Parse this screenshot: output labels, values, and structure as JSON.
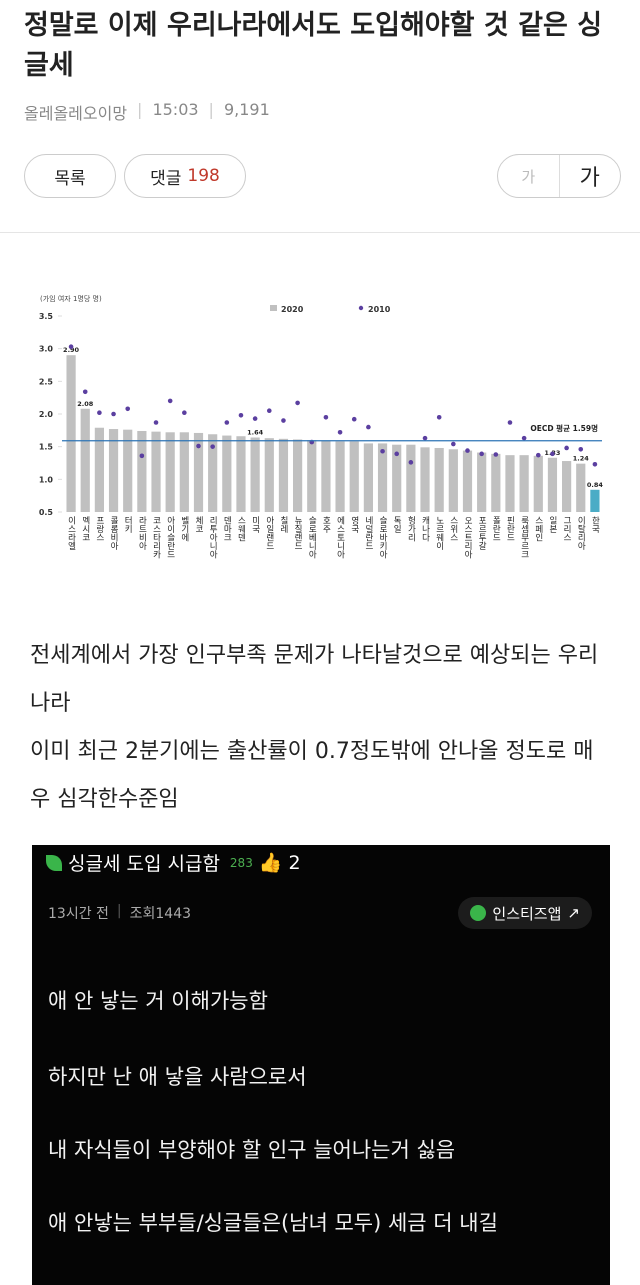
{
  "header": {
    "title": "정말로 이제 우리나라에서도 도입해야할 것 같은 싱글세",
    "author": "올레올레오이망",
    "time": "15:03",
    "views": "9,191",
    "buttons": {
      "list": "목록",
      "comments_label": "댓글",
      "comments_count": "198",
      "font_small": "가",
      "font_large": "가"
    }
  },
  "chart_data": {
    "type": "bar",
    "y_label": "(가임 여자 1명당 명)",
    "categories": [
      "이스라엘",
      "멕시코",
      "프랑스",
      "콜롬비아",
      "터키",
      "라트비아",
      "코스타리카",
      "아이슬란드",
      "벨기에",
      "체코",
      "리투아니아",
      "덴마크",
      "스웨덴",
      "미국",
      "아일랜드",
      "칠레",
      "뉴질랜드",
      "슬로베니아",
      "호주",
      "에스토니아",
      "영국",
      "네덜란드",
      "슬로바키아",
      "독일",
      "헝가리",
      "캐나다",
      "노르웨이",
      "스위스",
      "오스트리아",
      "포르투갈",
      "폴란드",
      "핀란드",
      "룩셈부르크",
      "스페인",
      "일본",
      "그리스",
      "이탈리아",
      "한국"
    ],
    "series": [
      {
        "name": "2020",
        "color": "#c0c0c0",
        "colors": [
          "#c0c0c0",
          "#c0c0c0",
          "#c0c0c0",
          "#c0c0c0",
          "#c0c0c0",
          "#c0c0c0",
          "#c0c0c0",
          "#c0c0c0",
          "#c0c0c0",
          "#c0c0c0",
          "#c0c0c0",
          "#c0c0c0",
          "#c0c0c0",
          "#c0c0c0",
          "#c0c0c0",
          "#c0c0c0",
          "#c0c0c0",
          "#c0c0c0",
          "#c0c0c0",
          "#c0c0c0",
          "#c0c0c0",
          "#c0c0c0",
          "#c0c0c0",
          "#c0c0c0",
          "#c0c0c0",
          "#c0c0c0",
          "#c0c0c0",
          "#c0c0c0",
          "#c0c0c0",
          "#c0c0c0",
          "#c0c0c0",
          "#c0c0c0",
          "#c0c0c0",
          "#c0c0c0",
          "#c0c0c0",
          "#c0c0c0",
          "#c0c0c0",
          "#4bacc6"
        ],
        "values": [
          2.9,
          2.08,
          1.79,
          1.77,
          1.76,
          1.74,
          1.73,
          1.72,
          1.72,
          1.71,
          1.69,
          1.67,
          1.66,
          1.64,
          1.63,
          1.62,
          1.61,
          1.6,
          1.59,
          1.58,
          1.58,
          1.55,
          1.55,
          1.53,
          1.53,
          1.49,
          1.48,
          1.46,
          1.44,
          1.41,
          1.39,
          1.37,
          1.37,
          1.36,
          1.33,
          1.28,
          1.24,
          0.84
        ],
        "value_labels": [
          "2.90",
          "2.08",
          null,
          null,
          null,
          null,
          null,
          null,
          null,
          null,
          null,
          null,
          null,
          "1.64",
          null,
          null,
          null,
          null,
          null,
          null,
          null,
          null,
          null,
          null,
          null,
          null,
          null,
          null,
          null,
          null,
          null,
          null,
          null,
          null,
          "1.33",
          null,
          "1.24",
          "0.84"
        ]
      },
      {
        "name": "2010",
        "color": "#5b3fa0",
        "values": [
          3.03,
          2.34,
          2.02,
          2.0,
          2.08,
          1.36,
          1.87,
          2.2,
          2.02,
          1.51,
          1.5,
          1.87,
          1.98,
          1.93,
          2.05,
          1.9,
          2.17,
          1.57,
          1.95,
          1.72,
          1.92,
          1.8,
          1.43,
          1.39,
          1.26,
          1.63,
          1.95,
          1.54,
          1.44,
          1.39,
          1.38,
          1.87,
          1.63,
          1.37,
          1.39,
          1.48,
          1.46,
          1.23
        ]
      }
    ],
    "oecd": {
      "label": "OECD 평균 1.59명",
      "value": 1.59,
      "color": "#2e75b6"
    },
    "ylim": [
      0.5,
      3.5
    ],
    "yticks": [
      0.5,
      {
        "value": 1,
        "label": "1.0"
      },
      1.5,
      {
        "value": 2,
        "label": "2.0"
      },
      2.5,
      {
        "value": 3,
        "label": "3.0"
      },
      3.5
    ]
  },
  "body": {
    "paragraphs": [
      "전세계에서 가장 인구부족 문제가 나타날것으로 예상되는 우리나라",
      "이미 최근 2분기에는 출산률이 0.7정도밖에 안나올 정도로 매우 심각한수준임"
    ]
  },
  "embed": {
    "title": "싱글세 도입 시급함",
    "score": "283",
    "likes": "2",
    "time": "13시간 전",
    "views": "조회1443",
    "app": "인스티즈앱",
    "lines": [
      "애 안 낳는 거 이해가능함",
      "하지만 난 애 낳을 사람으로서",
      "내 자식들이 부양해야 할 인구 늘어나는거 싫음",
      "애 안낳는 부부들/싱글들은(남녀 모두) 세금 더 내길"
    ]
  }
}
